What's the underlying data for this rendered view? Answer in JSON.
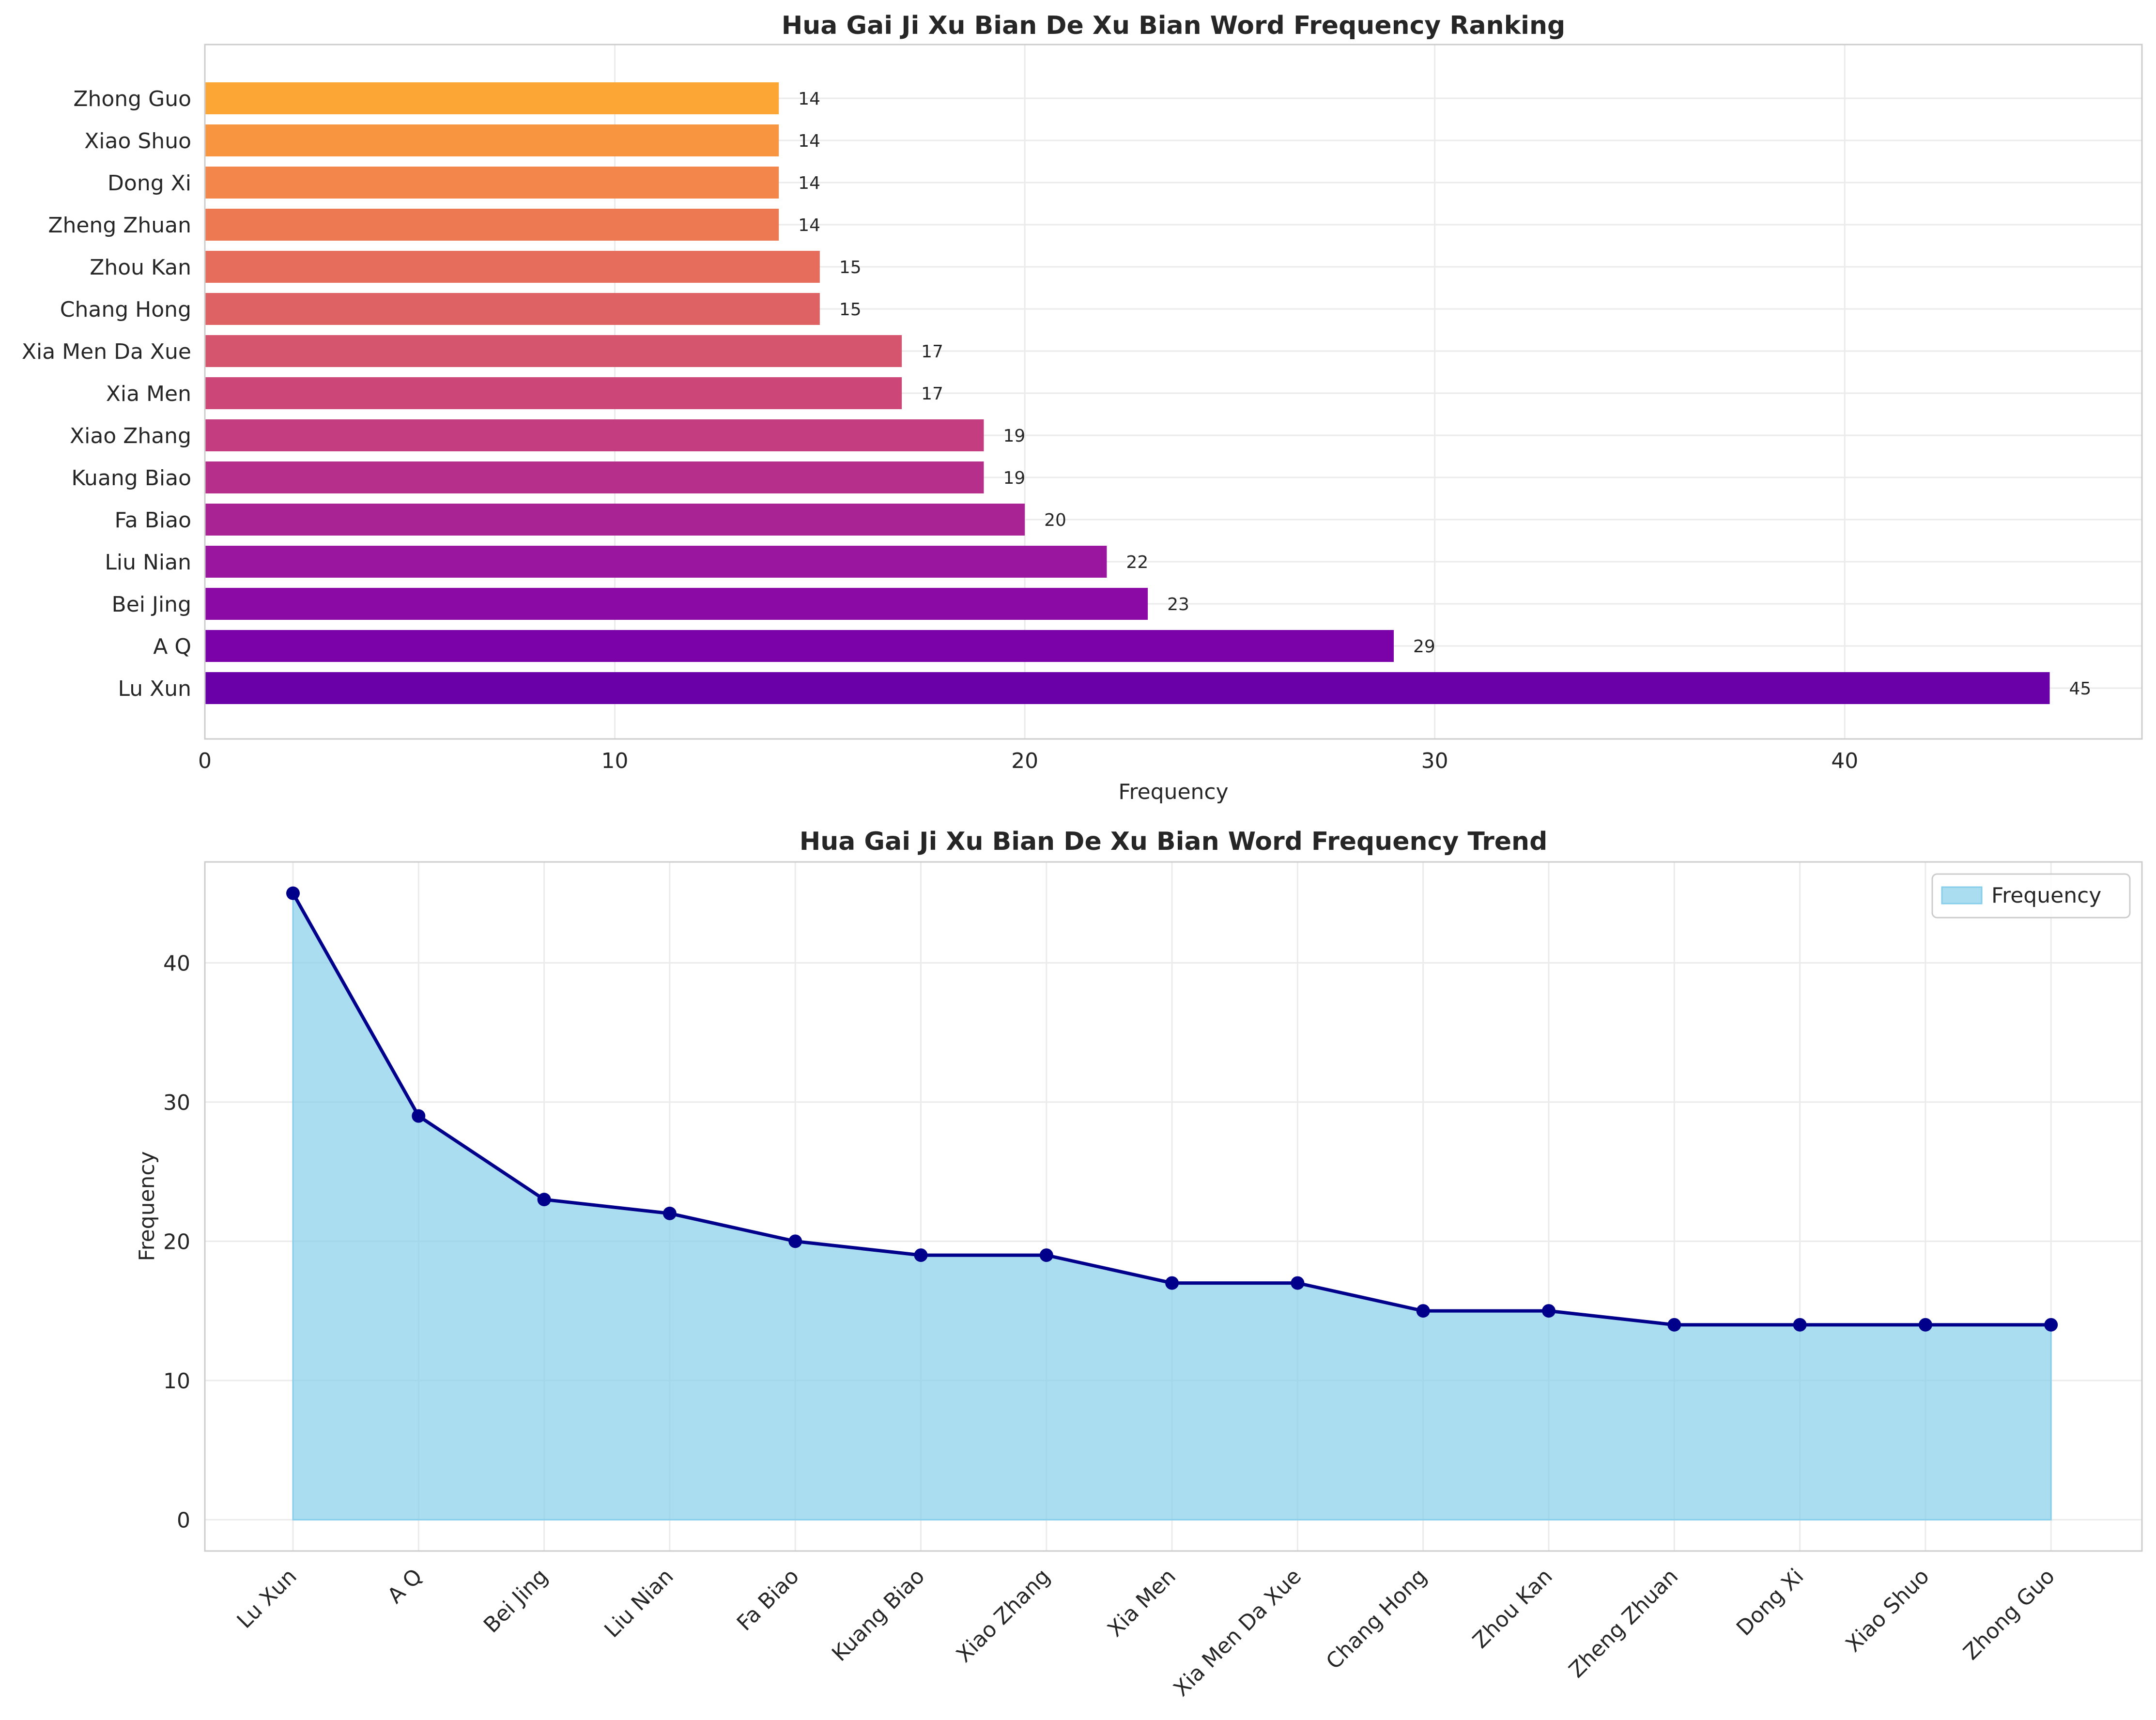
{
  "chart_data": [
    {
      "type": "bar",
      "orientation": "horizontal",
      "title": "Hua Gai Ji Xu Bian De Xu Bian Word Frequency Ranking",
      "xlabel": "Frequency",
      "ylabel": "",
      "xlim": [
        0,
        47.25
      ],
      "xticks": [
        0,
        10,
        20,
        30,
        40
      ],
      "grid": true,
      "categories": [
        "Lu Xun",
        "A Q",
        "Bei Jing",
        "Liu Nian",
        "Fa Biao",
        "Kuang Biao",
        "Xiao Zhang",
        "Xia Men",
        "Xia Men Da Xue",
        "Chang Hong",
        "Zhou Kan",
        "Zheng Zhuan",
        "Dong Xi",
        "Xiao Shuo",
        "Zhong Guo"
      ],
      "values": [
        45,
        29,
        23,
        22,
        20,
        19,
        19,
        17,
        17,
        15,
        15,
        14,
        14,
        14,
        14
      ],
      "colors": [
        "#6a00a8",
        "#7a02a8",
        "#8b0aa5",
        "#9a169f",
        "#a92395",
        "#b6308b",
        "#c33d80",
        "#cc4778",
        "#d5546e",
        "#de6164",
        "#e66c5c",
        "#ed7953",
        "#f3864a",
        "#f89540",
        "#fca636"
      ]
    },
    {
      "type": "area",
      "title": "Hua Gai Ji Xu Bian De Xu Bian Word Frequency Trend",
      "xlabel": "",
      "ylabel": "Frequency",
      "ylim": [
        -2.25,
        47.25
      ],
      "yticks": [
        0,
        10,
        20,
        30,
        40
      ],
      "grid": true,
      "legend": {
        "position": "top-right",
        "entries": [
          "Frequency"
        ]
      },
      "categories": [
        "Lu Xun",
        "A Q",
        "Bei Jing",
        "Liu Nian",
        "Fa Biao",
        "Kuang Biao",
        "Xiao Zhang",
        "Xia Men",
        "Xia Men Da Xue",
        "Chang Hong",
        "Zhou Kan",
        "Zheng Zhuan",
        "Dong Xi",
        "Xiao Shuo",
        "Zhong Guo"
      ],
      "series": [
        {
          "name": "Frequency",
          "values": [
            45,
            29,
            23,
            22,
            20,
            19,
            19,
            17,
            17,
            15,
            15,
            14,
            14,
            14,
            14
          ]
        }
      ],
      "fill_color": "#87ceeb",
      "line_color": "#00008b"
    }
  ]
}
